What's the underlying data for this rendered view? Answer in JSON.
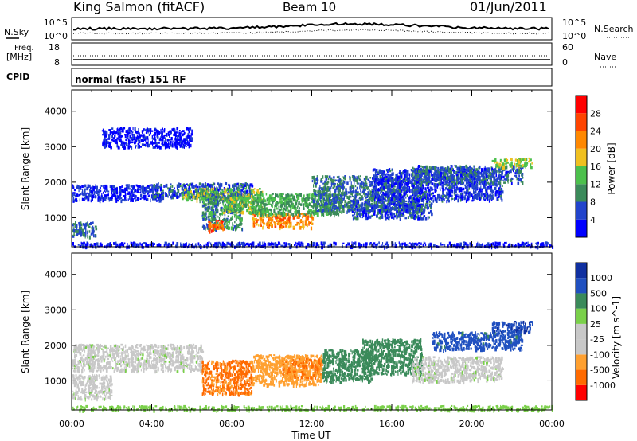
{
  "header": {
    "title": "King Salmon (fitACF)",
    "beam": "Beam 10",
    "date": "01/Jun/2011"
  },
  "noise_panel": {
    "left_label": "N.Sky",
    "right_label": "N.Search",
    "left_ticks": [
      "10^5",
      "10^0"
    ],
    "right_ticks": [
      "10^5",
      "10^0"
    ]
  },
  "freq_panel": {
    "left_label_1": "Freq.",
    "left_label_2": "[MHz]",
    "right_label": "Nave",
    "left_ticks": [
      "18",
      "8"
    ],
    "right_ticks": [
      "60",
      "0"
    ]
  },
  "cpid": {
    "label": "CPID",
    "mode": "normal (fast) 151 RF"
  },
  "colors": {
    "power_scale": [
      "#0000ff",
      "#2244cc",
      "#3b8a5a",
      "#4cc04c",
      "#f0c020",
      "#ff8800",
      "#ff4400",
      "#ff0000"
    ],
    "velocity_scale": [
      "#ff0000",
      "#ff6a00",
      "#ffa030",
      "#c8c8c8",
      "#c8c8c8",
      "#7ad04a",
      "#3a8a5a",
      "#2050c0",
      "#1030a0"
    ]
  },
  "chart_data": [
    {
      "type": "heatmap",
      "name": "power",
      "ylabel": "Slant Range [km]",
      "yticks": [
        1000,
        2000,
        3000,
        4000
      ],
      "ylim": [
        180,
        4600
      ],
      "xlim": [
        0,
        24
      ],
      "xticks": [
        0,
        4,
        8,
        12,
        16,
        20,
        24
      ],
      "colorbar_label": "Power [dB]",
      "colorbar_ticks": [
        "4",
        "8",
        "12",
        "16",
        "20",
        "24",
        "28"
      ],
      "regions": [
        {
          "t0": 0.0,
          "t1": 4.5,
          "r0": 1500,
          "r1": 1950,
          "v": 6
        },
        {
          "t0": 4.0,
          "t1": 9.0,
          "r0": 1600,
          "r1": 2000,
          "v": 8
        },
        {
          "t0": 5.5,
          "t1": 9.5,
          "r0": 1500,
          "r1": 1850,
          "v": 17
        },
        {
          "t0": 6.5,
          "t1": 8.5,
          "r0": 700,
          "r1": 1700,
          "v": 12
        },
        {
          "t0": 6.8,
          "t1": 7.6,
          "r0": 650,
          "r1": 950,
          "v": 27
        },
        {
          "t0": 7.5,
          "t1": 9.5,
          "r0": 1150,
          "r1": 1600,
          "v": 16
        },
        {
          "t0": 9.0,
          "t1": 12.0,
          "r0": 750,
          "r1": 1150,
          "v": 24
        },
        {
          "t0": 9.0,
          "t1": 13.5,
          "r0": 1100,
          "r1": 1700,
          "v": 14
        },
        {
          "t0": 12.0,
          "t1": 17.5,
          "r0": 1200,
          "r1": 2200,
          "v": 10
        },
        {
          "t0": 14.0,
          "t1": 18.0,
          "r0": 1000,
          "r1": 1500,
          "v": 8
        },
        {
          "t0": 15.0,
          "t1": 21.5,
          "r0": 1500,
          "r1": 2400,
          "v": 7
        },
        {
          "t0": 17.0,
          "t1": 22.5,
          "r0": 2000,
          "r1": 2500,
          "v": 9
        },
        {
          "t0": 21.0,
          "t1": 23.0,
          "r0": 2450,
          "r1": 2700,
          "v": 18
        },
        {
          "t0": 0.0,
          "t1": 24.0,
          "r0": 200,
          "r1": 330,
          "v": 5
        },
        {
          "t0": 1.5,
          "t1": 6.0,
          "r0": 3000,
          "r1": 3550,
          "v": 4
        },
        {
          "t0": 0.0,
          "t1": 1.2,
          "r0": 500,
          "r1": 900,
          "v": 10
        }
      ]
    },
    {
      "type": "heatmap",
      "name": "velocity",
      "ylabel": "Slant Range [km]",
      "xlabel": "Time UT",
      "yticks": [
        1000,
        2000,
        3000,
        4000
      ],
      "ylim": [
        180,
        4600
      ],
      "xlim": [
        0,
        24
      ],
      "xticks": [
        0,
        4,
        8,
        12,
        16,
        20,
        24
      ],
      "xtick_labels": [
        "00:00",
        "04:00",
        "08:00",
        "12:00",
        "16:00",
        "20:00",
        "00:00"
      ],
      "colorbar_label": "Velocity [m s^-1]",
      "colorbar_ticks": [
        "1000",
        "500",
        "100",
        "25",
        "-25",
        "-100",
        "-500",
        "-1000"
      ],
      "regions": [
        {
          "t0": 0.0,
          "t1": 6.5,
          "r0": 1300,
          "r1": 2050,
          "v": 0
        },
        {
          "t0": 0.0,
          "t1": 2.0,
          "r0": 500,
          "r1": 1200,
          "v": 0
        },
        {
          "t0": 6.5,
          "t1": 9.0,
          "r0": 650,
          "r1": 1600,
          "v": -600
        },
        {
          "t0": 9.0,
          "t1": 12.5,
          "r0": 900,
          "r1": 1750,
          "v": -200
        },
        {
          "t0": 10.5,
          "t1": 12.5,
          "r0": 1100,
          "r1": 1650,
          "v": -500
        },
        {
          "t0": 12.5,
          "t1": 15.0,
          "r0": 1000,
          "r1": 1900,
          "v": 150
        },
        {
          "t0": 14.5,
          "t1": 17.5,
          "r0": 1200,
          "r1": 2200,
          "v": 300
        },
        {
          "t0": 17.0,
          "t1": 21.5,
          "r0": 1000,
          "r1": 1700,
          "v": 0
        },
        {
          "t0": 18.0,
          "t1": 22.5,
          "r0": 1900,
          "r1": 2400,
          "v": 700
        },
        {
          "t0": 21.0,
          "t1": 23.0,
          "r0": 2400,
          "r1": 2700,
          "v": 900
        },
        {
          "t0": 0.0,
          "t1": 24.0,
          "r0": 200,
          "r1": 320,
          "v": 60
        }
      ]
    }
  ]
}
